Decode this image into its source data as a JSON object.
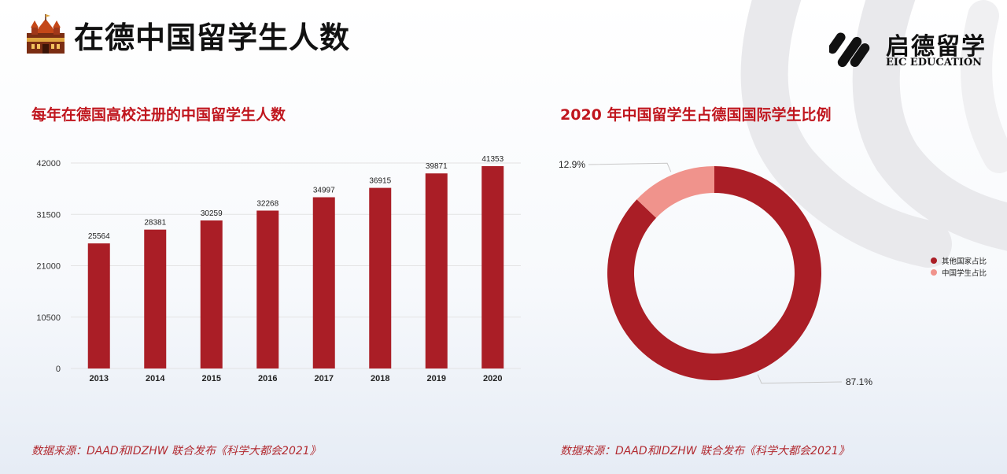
{
  "page": {
    "title": "在德中国留学生人数",
    "brand": {
      "name_cn": "启德留学",
      "name_en": "EIC EDUCATION"
    }
  },
  "colors": {
    "primary": "#aa1e26",
    "secondary": "#f0938c",
    "title_red": "#c0161e",
    "grid": "#e3e3e3"
  },
  "icons": {
    "header": "castle-icon",
    "brand": "eic-logo-icon"
  },
  "chart_data": [
    {
      "type": "bar",
      "title": "每年在德国高校注册的中国留学生人数",
      "categories": [
        "2013",
        "2014",
        "2015",
        "2016",
        "2017",
        "2018",
        "2019",
        "2020"
      ],
      "values": [
        25564,
        28381,
        30259,
        32268,
        34997,
        36915,
        39871,
        41353
      ],
      "yticks": [
        "0",
        "10500",
        "21000",
        "31500",
        "42000"
      ],
      "ylim": [
        0,
        42000
      ],
      "grid": true,
      "xlabel": "",
      "ylabel": ""
    },
    {
      "type": "pie",
      "subtype": "donut",
      "title": "2020 年中国留学生占德国国际学生比例",
      "labels": [
        "其他国家占比",
        "中国学生占比"
      ],
      "values": [
        87.1,
        12.9
      ],
      "value_labels": [
        "87.1%",
        "12.9%"
      ],
      "legend_position": "right"
    }
  ],
  "footnotes": {
    "left": "数据来源：DAAD和IDZHW 联合发布《科学大都会2021》",
    "right": "数据来源：DAAD和IDZHW 联合发布《科学大都会2021》"
  }
}
